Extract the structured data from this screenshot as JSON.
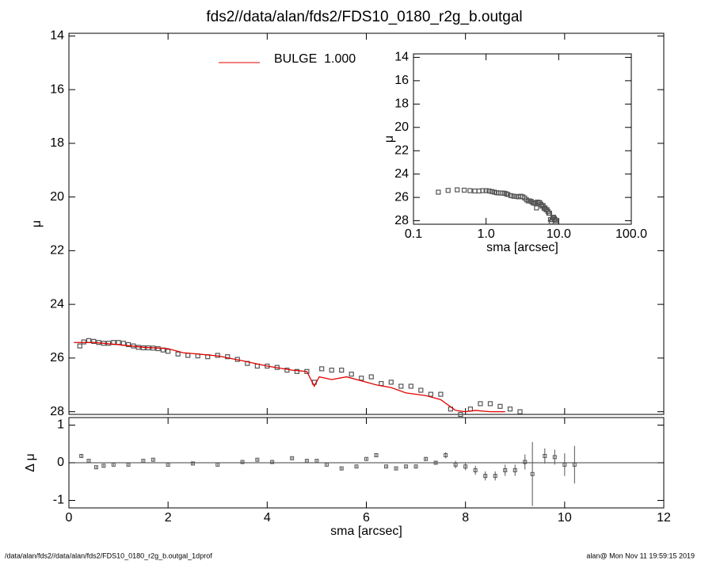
{
  "title": "fds2//data/alan/fds2/FDS10_0180_r2g_b.outgal",
  "footer_left": "/data/alan/fds2//data/alan/fds2/FDS10_0180_r2g_b.outgal_1dprof",
  "footer_right": "alan@  Mon Nov 11 19:59:15 2019",
  "chart_data": [
    {
      "type": "scatter",
      "ylabel": "μ",
      "ylim": [
        28.1,
        13.9
      ],
      "yticks": [
        14,
        16,
        18,
        20,
        22,
        24,
        26,
        28
      ],
      "xlim": [
        0,
        12
      ],
      "series": [
        {
          "color": "#555555",
          "marker": "square",
          "x": [
            0.22,
            0.3,
            0.4,
            0.5,
            0.6,
            0.7,
            0.8,
            0.9,
            1.0,
            1.1,
            1.2,
            1.3,
            1.4,
            1.5,
            1.6,
            1.7,
            1.8,
            1.9,
            2.0,
            2.2,
            2.4,
            2.6,
            2.8,
            3.0,
            3.2,
            3.4,
            3.6,
            3.8,
            4.0,
            4.2,
            4.4,
            4.6,
            4.8,
            4.95,
            5.1,
            5.3,
            5.5,
            5.7,
            5.9,
            6.1,
            6.3,
            6.5,
            6.7,
            6.9,
            7.1,
            7.3,
            7.5,
            7.7,
            7.9,
            8.1,
            8.3,
            8.5,
            8.7,
            8.9,
            9.1
          ],
          "values": [
            25.55,
            25.4,
            25.35,
            25.38,
            25.42,
            25.45,
            25.45,
            25.42,
            25.42,
            25.45,
            25.5,
            25.55,
            25.6,
            25.62,
            25.62,
            25.63,
            25.65,
            25.7,
            25.75,
            25.85,
            25.9,
            25.92,
            25.95,
            25.9,
            25.95,
            26.05,
            26.2,
            26.3,
            26.3,
            26.35,
            26.45,
            26.5,
            26.5,
            26.9,
            26.4,
            26.45,
            26.45,
            26.6,
            26.75,
            26.7,
            26.95,
            26.9,
            27.05,
            27.05,
            27.2,
            27.35,
            27.35,
            27.9,
            28.1,
            27.9,
            27.7,
            27.7,
            27.8,
            27.9,
            28.0
          ]
        },
        {
          "name": "BULGE  1.000",
          "color": "#e00000",
          "marker": "line",
          "x": [
            0.1,
            0.5,
            1.0,
            1.5,
            2.0,
            2.3,
            2.6,
            3.0,
            3.5,
            4.0,
            4.5,
            4.8,
            4.95,
            5.05,
            5.3,
            5.6,
            5.9,
            6.2,
            6.5,
            6.8,
            7.2,
            7.5,
            7.8,
            8.0,
            8.2,
            8.5,
            8.8
          ],
          "values": [
            25.42,
            25.42,
            25.5,
            25.6,
            25.65,
            25.8,
            25.85,
            25.92,
            26.1,
            26.3,
            26.45,
            26.5,
            27.05,
            26.7,
            26.8,
            26.7,
            26.85,
            27.0,
            27.1,
            27.3,
            27.4,
            27.55,
            27.95,
            28.0,
            27.95,
            28.0,
            28.0
          ]
        }
      ]
    },
    {
      "type": "errorbar",
      "ylabel": "Δ μ",
      "xlabel": "sma [arcsec]",
      "xlim": [
        0,
        12
      ],
      "xticks": [
        0,
        2,
        4,
        6,
        8,
        10,
        12
      ],
      "ylim": [
        -1.2,
        1.2
      ],
      "yticks": [
        -1,
        0,
        1
      ],
      "color": "#555555",
      "x": [
        0.25,
        0.4,
        0.55,
        0.7,
        0.9,
        1.2,
        1.5,
        1.7,
        2.0,
        2.5,
        3.0,
        3.5,
        3.8,
        4.1,
        4.5,
        4.8,
        5.0,
        5.2,
        5.5,
        5.8,
        6.0,
        6.2,
        6.4,
        6.6,
        6.8,
        7.0,
        7.2,
        7.4,
        7.6,
        7.8,
        8.0,
        8.2,
        8.4,
        8.6,
        8.8,
        9.0,
        9.2,
        9.35,
        9.6,
        9.8,
        10.0,
        10.2
      ],
      "values": [
        0.18,
        0.05,
        -0.12,
        -0.08,
        -0.05,
        -0.05,
        0.05,
        0.08,
        -0.05,
        -0.02,
        -0.05,
        0.02,
        0.08,
        0.02,
        0.12,
        0.05,
        0.05,
        -0.05,
        -0.15,
        -0.1,
        0.1,
        0.2,
        -0.1,
        -0.15,
        -0.1,
        -0.1,
        0.1,
        0.0,
        0.2,
        -0.05,
        -0.1,
        -0.2,
        -0.35,
        -0.35,
        -0.2,
        -0.2,
        0.02,
        -0.3,
        0.18,
        0.15,
        -0.05,
        -0.05
      ],
      "errors": [
        0.03,
        0.03,
        0.03,
        0.03,
        0.03,
        0.03,
        0.03,
        0.03,
        0.03,
        0.03,
        0.03,
        0.03,
        0.03,
        0.03,
        0.03,
        0.03,
        0.03,
        0.03,
        0.03,
        0.03,
        0.03,
        0.03,
        0.03,
        0.03,
        0.03,
        0.05,
        0.05,
        0.05,
        0.08,
        0.1,
        0.1,
        0.12,
        0.12,
        0.12,
        0.15,
        0.15,
        0.2,
        0.85,
        0.2,
        0.2,
        0.3,
        0.5
      ]
    },
    {
      "type": "scatter",
      "ylabel": "μ",
      "xlabel": "sma [arcsec]",
      "xlog": true,
      "xlim": [
        0.1,
        100
      ],
      "xticks": [
        0.1,
        {
          "value": 1,
          "label": "1.0"
        },
        {
          "value": 10,
          "label": "10.0"
        },
        {
          "value": 100,
          "label": "100.0"
        }
      ],
      "ylim": [
        28.3,
        13.7
      ],
      "yticks": [
        14,
        16,
        18,
        20,
        22,
        24,
        26,
        28
      ],
      "color": "#555555"
    }
  ]
}
